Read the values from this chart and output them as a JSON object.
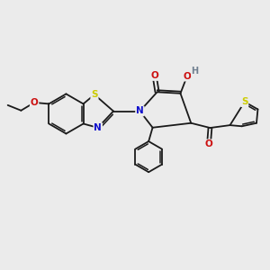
{
  "background_color": "#ebebeb",
  "bond_color": "#1a1a1a",
  "atom_colors": {
    "N": "#1010cc",
    "O": "#cc1010",
    "S": "#cccc00",
    "H": "#708090",
    "C": "#1a1a1a"
  },
  "figsize": [
    3.0,
    3.0
  ],
  "dpi": 100
}
